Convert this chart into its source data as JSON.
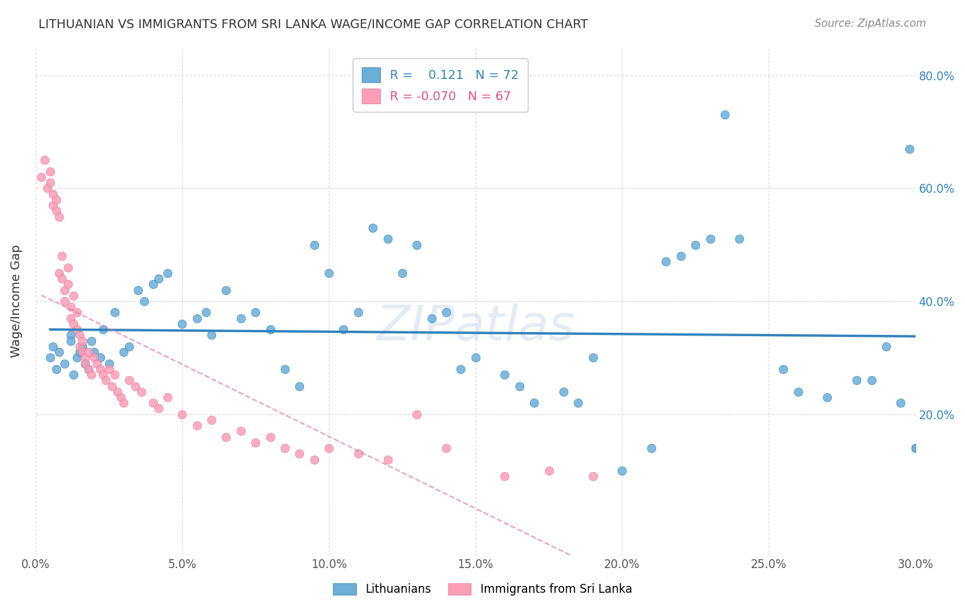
{
  "title": "LITHUANIAN VS IMMIGRANTS FROM SRI LANKA WAGE/INCOME GAP CORRELATION CHART",
  "source": "Source: ZipAtlas.com",
  "ylabel": "Wage/Income Gap",
  "background_color": "#ffffff",
  "grid_color": "#cccccc",
  "blue_color": "#6baed6",
  "pink_color": "#fa9fb5",
  "blue_line_color": "#3182bd",
  "pink_line_color": "#e377a2",
  "x_min": 0.0,
  "x_max": 0.3,
  "y_min": -0.05,
  "y_max": 0.85,
  "blue_scatter_x": [
    0.005,
    0.006,
    0.007,
    0.008,
    0.01,
    0.012,
    0.012,
    0.013,
    0.014,
    0.015,
    0.016,
    0.017,
    0.018,
    0.019,
    0.02,
    0.022,
    0.023,
    0.025,
    0.027,
    0.03,
    0.032,
    0.035,
    0.037,
    0.04,
    0.042,
    0.045,
    0.05,
    0.055,
    0.058,
    0.06,
    0.065,
    0.07,
    0.075,
    0.08,
    0.085,
    0.09,
    0.095,
    0.1,
    0.105,
    0.11,
    0.115,
    0.12,
    0.125,
    0.13,
    0.135,
    0.14,
    0.145,
    0.15,
    0.16,
    0.165,
    0.17,
    0.18,
    0.185,
    0.19,
    0.2,
    0.21,
    0.215,
    0.22,
    0.225,
    0.23,
    0.235,
    0.24,
    0.255,
    0.26,
    0.27,
    0.28,
    0.285,
    0.29,
    0.295,
    0.298,
    0.3,
    0.3
  ],
  "blue_scatter_y": [
    0.3,
    0.32,
    0.28,
    0.31,
    0.29,
    0.34,
    0.33,
    0.27,
    0.3,
    0.31,
    0.32,
    0.29,
    0.28,
    0.33,
    0.31,
    0.3,
    0.35,
    0.29,
    0.38,
    0.31,
    0.32,
    0.42,
    0.4,
    0.43,
    0.44,
    0.45,
    0.36,
    0.37,
    0.38,
    0.34,
    0.42,
    0.37,
    0.38,
    0.35,
    0.28,
    0.25,
    0.5,
    0.45,
    0.35,
    0.38,
    0.53,
    0.51,
    0.45,
    0.5,
    0.37,
    0.38,
    0.28,
    0.3,
    0.27,
    0.25,
    0.22,
    0.24,
    0.22,
    0.3,
    0.1,
    0.14,
    0.47,
    0.48,
    0.5,
    0.51,
    0.73,
    0.51,
    0.28,
    0.24,
    0.23,
    0.26,
    0.26,
    0.32,
    0.22,
    0.67,
    0.14,
    0.14
  ],
  "pink_scatter_x": [
    0.002,
    0.003,
    0.004,
    0.005,
    0.005,
    0.006,
    0.006,
    0.007,
    0.007,
    0.008,
    0.008,
    0.009,
    0.009,
    0.01,
    0.01,
    0.011,
    0.011,
    0.012,
    0.012,
    0.013,
    0.013,
    0.014,
    0.014,
    0.015,
    0.015,
    0.016,
    0.016,
    0.017,
    0.017,
    0.018,
    0.018,
    0.019,
    0.02,
    0.021,
    0.022,
    0.023,
    0.024,
    0.025,
    0.026,
    0.027,
    0.028,
    0.029,
    0.03,
    0.032,
    0.034,
    0.036,
    0.04,
    0.042,
    0.045,
    0.05,
    0.055,
    0.06,
    0.065,
    0.07,
    0.075,
    0.08,
    0.085,
    0.09,
    0.095,
    0.1,
    0.11,
    0.12,
    0.13,
    0.14,
    0.16,
    0.175,
    0.19
  ],
  "pink_scatter_y": [
    0.62,
    0.65,
    0.6,
    0.63,
    0.61,
    0.59,
    0.57,
    0.58,
    0.56,
    0.55,
    0.45,
    0.48,
    0.44,
    0.42,
    0.4,
    0.46,
    0.43,
    0.39,
    0.37,
    0.36,
    0.41,
    0.38,
    0.35,
    0.34,
    0.32,
    0.33,
    0.31,
    0.3,
    0.29,
    0.31,
    0.28,
    0.27,
    0.3,
    0.29,
    0.28,
    0.27,
    0.26,
    0.28,
    0.25,
    0.27,
    0.24,
    0.23,
    0.22,
    0.26,
    0.25,
    0.24,
    0.22,
    0.21,
    0.23,
    0.2,
    0.18,
    0.19,
    0.16,
    0.17,
    0.15,
    0.16,
    0.14,
    0.13,
    0.12,
    0.14,
    0.13,
    0.12,
    0.2,
    0.14,
    0.09,
    0.1,
    0.09
  ],
  "legend_blue_label": "R =    0.121   N = 72",
  "legend_pink_label": "R = -0.070   N = 67",
  "legend_bottom_blue": "Lithuanians",
  "legend_bottom_pink": "Immigrants from Sri Lanka"
}
